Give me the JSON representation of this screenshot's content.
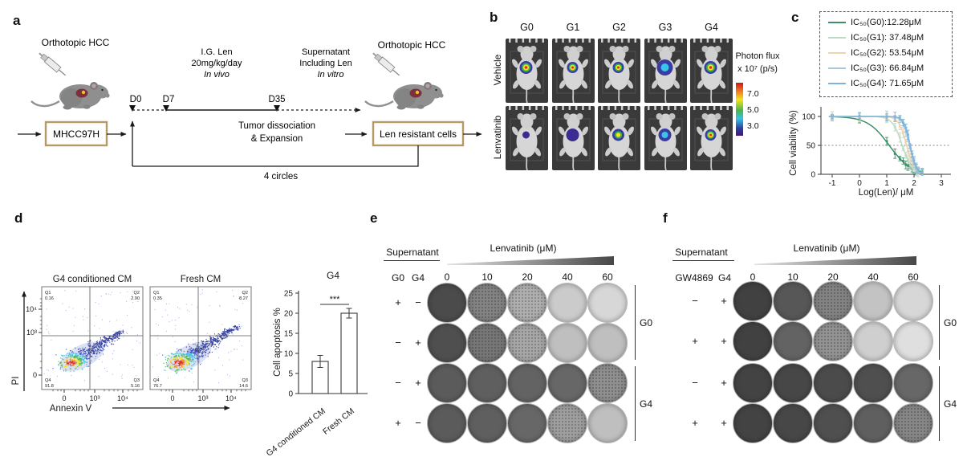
{
  "panels": {
    "a": {
      "label": "a",
      "orthotopic_left": "Orthotopic HCC",
      "orthotopic_right": "Orthotopic HCC",
      "treatment": {
        "line1": "I.G. Len",
        "line2": "20mg/kg/day",
        "line3": "In vivo"
      },
      "supernatant": {
        "line1": "Supernatant",
        "line2": "Including Len",
        "line3": "In vitro"
      },
      "timeline": {
        "d0": "D0",
        "d7": "D7",
        "d35": "D35"
      },
      "mhcc_box": "MHCC97H",
      "dissociation": {
        "line1": "Tumor dissociation",
        "line2": "& Expansion"
      },
      "resistant_box": "Len resistant cells",
      "cycles": "4 circles",
      "box_border_color": "#b59a66"
    },
    "b": {
      "label": "b",
      "columns": [
        "G0",
        "G1",
        "G2",
        "G3",
        "G4"
      ],
      "rows": [
        "Vehicle",
        "Lenvatinib"
      ],
      "colorbar": {
        "title1": "Photon flux",
        "title2": "x 10⁷ (p/s)",
        "ticks": [
          "7.0",
          "5.0",
          "3.0"
        ]
      },
      "mice": [
        [
          {
            "type": "hot",
            "r": 8
          },
          {
            "type": "hot",
            "r": 7
          },
          {
            "type": "hot",
            "r": 7
          },
          {
            "type": "cool",
            "r": 10
          },
          {
            "type": "hot",
            "r": 8
          }
        ],
        [
          {
            "type": "dim",
            "r": 4.5
          },
          {
            "type": "dim",
            "r": 8
          },
          {
            "type": "warm",
            "r": 7.5
          },
          {
            "type": "cool",
            "r": 8
          },
          {
            "type": "hot",
            "r": 7
          }
        ]
      ]
    },
    "c": {
      "label": "c"
    },
    "d": {
      "label": "d",
      "yaxis_label": "PI",
      "xaxis_label": "Annexin V",
      "xtick_labels": [
        "0",
        "10³",
        "10⁴"
      ],
      "ytick_labels": [
        "10⁴",
        "10³",
        "0"
      ],
      "plots": [
        {
          "title": "G4 conditioned CM",
          "quadrants": {
            "Q1": "0.16",
            "Q2": "2.90",
            "Q3": "5.16",
            "Q4": "91.8"
          }
        },
        {
          "title": "Fresh CM",
          "quadrants": {
            "Q1": "0.35",
            "Q2": "8.27",
            "Q3": "14.6",
            "Q4": "76.7"
          }
        }
      ]
    },
    "e": {
      "label": "e",
      "supernatant_label": "Supernatant",
      "col_headers": [
        "G0",
        "G4"
      ],
      "lenvatinib_label": "Lenvatinib (μM)",
      "doses": [
        "0",
        "10",
        "20",
        "40",
        "60"
      ],
      "rows": [
        {
          "signs": [
            "+",
            "−"
          ],
          "colony_density": [
            80,
            52,
            30,
            16,
            10
          ]
        },
        {
          "signs": [
            "−",
            "+"
          ],
          "colony_density": [
            78,
            58,
            34,
            22,
            22
          ]
        },
        {
          "signs": [
            "−",
            "+"
          ],
          "colony_density": [
            72,
            70,
            68,
            66,
            46
          ]
        },
        {
          "signs": [
            "+",
            "−"
          ],
          "colony_density": [
            72,
            70,
            66,
            38,
            22
          ]
        }
      ],
      "group_labels": [
        "G0",
        "G4"
      ]
    },
    "f": {
      "label": "f",
      "supernatant_label": "Supernatant",
      "col_headers": [
        "GW4869",
        "G4"
      ],
      "lenvatinib_label": "Lenvatinib (μM)",
      "doses": [
        "0",
        "10",
        "20",
        "40",
        "60"
      ],
      "rows": [
        {
          "signs": [
            "−",
            "+"
          ],
          "colony_density": [
            85,
            74,
            52,
            20,
            10
          ]
        },
        {
          "signs": [
            "+",
            "+"
          ],
          "colony_density": [
            85,
            68,
            44,
            14,
            6
          ]
        },
        {
          "signs": [
            "−",
            "+"
          ],
          "colony_density": [
            84,
            82,
            80,
            78,
            66
          ]
        },
        {
          "signs": [
            "+",
            "+"
          ],
          "colony_density": [
            84,
            82,
            78,
            70,
            50
          ]
        }
      ],
      "group_labels": [
        "G0",
        "G4"
      ]
    }
  },
  "chart_data": [
    {
      "id": "viability_curves",
      "type": "line",
      "title": "",
      "xlabel": "Log(Len)/ μM",
      "ylabel": "Cell viability (%)",
      "xticks": [
        -1,
        0,
        1,
        2,
        3
      ],
      "yticks": [
        0,
        50,
        100
      ],
      "xlim": [
        -1.35,
        3.1
      ],
      "ylim": [
        0,
        115
      ],
      "reference_line_y": 50,
      "legend_position": "top",
      "grid": false,
      "series": [
        {
          "name": "IC₅₀(G0):12.28μM",
          "ic50_uM": 12.28,
          "log_ic50": 1.09,
          "hill": 1.1,
          "color": "#3e8e68"
        },
        {
          "name": "IC₅₀(G1): 37.48μM",
          "ic50_uM": 37.48,
          "log_ic50": 1.57,
          "hill": 2.4,
          "color": "#bedbc6"
        },
        {
          "name": "IC₅₀(G2): 53.54μM",
          "ic50_uM": 53.54,
          "log_ic50": 1.73,
          "hill": 3.0,
          "color": "#eed3ab"
        },
        {
          "name": "IC₅₀(G3): 66.84μM",
          "ic50_uM": 66.84,
          "log_ic50": 1.83,
          "hill": 3.6,
          "color": "#abc8da"
        },
        {
          "name": "IC₅₀(G4): 71.65μM",
          "ic50_uM": 71.65,
          "log_ic50": 1.86,
          "hill": 3.8,
          "color": "#7fb5dc"
        }
      ],
      "marker_logs": [
        -1,
        0,
        1,
        1.3,
        1.48,
        1.6,
        1.7,
        1.78,
        1.86,
        1.93,
        2.0,
        2.08,
        2.15,
        2.3
      ]
    },
    {
      "id": "apoptosis_bars",
      "type": "bar",
      "title": "G4",
      "ylabel": "Cell apoptosis %",
      "categories": [
        "G4 conditioned CM",
        "Fresh CM"
      ],
      "values": [
        8,
        20
      ],
      "errors": [
        1.5,
        1.2
      ],
      "yticks": [
        0,
        5,
        10,
        15,
        20,
        25
      ],
      "ylim": [
        0,
        25
      ],
      "significance": "***"
    }
  ]
}
